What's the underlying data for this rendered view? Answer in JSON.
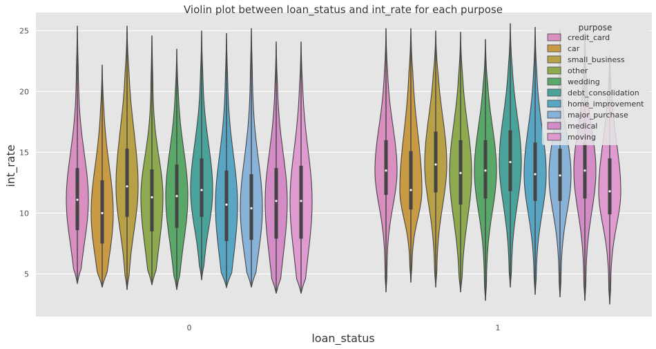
{
  "chart_data": {
    "type": "violin",
    "title": "Violin plot between loan_status and int_rate for each purpose",
    "xlabel": "loan_status",
    "ylabel": "int_rate",
    "categories": [
      "0",
      "1"
    ],
    "ylim": [
      1.5,
      26.5
    ],
    "yticks": [
      5,
      10,
      15,
      20,
      25
    ],
    "grid": true,
    "legend": {
      "title": "purpose",
      "position": "top-right"
    },
    "series": [
      {
        "name": "credit_card",
        "color": "#d98fbf",
        "values": [
          {
            "loan_status": "0",
            "min": 4.2,
            "q1": 8.6,
            "median": 11.1,
            "q3": 13.7,
            "max": 25.4
          },
          {
            "loan_status": "1",
            "min": 3.5,
            "q1": 11.5,
            "median": 13.5,
            "q3": 16.0,
            "max": 25.2
          }
        ]
      },
      {
        "name": "car",
        "color": "#c99a44",
        "values": [
          {
            "loan_status": "0",
            "min": 3.9,
            "q1": 7.5,
            "median": 10.0,
            "q3": 12.7,
            "max": 22.2
          },
          {
            "loan_status": "1",
            "min": 4.3,
            "q1": 10.3,
            "median": 11.9,
            "q3": 15.1,
            "max": 25.2
          }
        ]
      },
      {
        "name": "small_business",
        "color": "#b8a046",
        "values": [
          {
            "loan_status": "0",
            "min": 3.7,
            "q1": 9.7,
            "median": 12.2,
            "q3": 15.3,
            "max": 25.4
          },
          {
            "loan_status": "1",
            "min": 3.9,
            "q1": 11.7,
            "median": 14.0,
            "q3": 16.7,
            "max": 25.0
          }
        ]
      },
      {
        "name": "other",
        "color": "#8eaa4f",
        "values": [
          {
            "loan_status": "0",
            "min": 4.1,
            "q1": 8.5,
            "median": 11.3,
            "q3": 13.6,
            "max": 24.6
          },
          {
            "loan_status": "1",
            "min": 3.5,
            "q1": 10.7,
            "median": 13.3,
            "q3": 16.0,
            "max": 24.9
          }
        ]
      },
      {
        "name": "wedding",
        "color": "#5aa869",
        "values": [
          {
            "loan_status": "0",
            "min": 3.7,
            "q1": 8.8,
            "median": 11.4,
            "q3": 14.0,
            "max": 23.5
          },
          {
            "loan_status": "1",
            "min": 2.8,
            "q1": 11.2,
            "median": 13.5,
            "q3": 16.0,
            "max": 24.3
          }
        ]
      },
      {
        "name": "debt_consolidation",
        "color": "#4aa39a",
        "values": [
          {
            "loan_status": "0",
            "min": 4.5,
            "q1": 9.7,
            "median": 11.9,
            "q3": 14.5,
            "max": 25.0
          },
          {
            "loan_status": "1",
            "min": 3.9,
            "q1": 11.8,
            "median": 14.2,
            "q3": 16.8,
            "max": 25.6
          }
        ]
      },
      {
        "name": "home_improvement",
        "color": "#58a6c4",
        "values": [
          {
            "loan_status": "0",
            "min": 3.9,
            "q1": 7.7,
            "median": 10.7,
            "q3": 13.5,
            "max": 24.8
          },
          {
            "loan_status": "1",
            "min": 3.3,
            "q1": 11.0,
            "median": 13.2,
            "q3": 15.8,
            "max": 25.3
          }
        ]
      },
      {
        "name": "major_purchase",
        "color": "#89b2d9",
        "values": [
          {
            "loan_status": "0",
            "min": 3.9,
            "q1": 7.8,
            "median": 10.4,
            "q3": 13.2,
            "max": 25.2
          },
          {
            "loan_status": "1",
            "min": 3.1,
            "q1": 11.0,
            "median": 13.1,
            "q3": 15.3,
            "max": 25.1
          }
        ]
      },
      {
        "name": "medical",
        "color": "#d38cc6",
        "values": [
          {
            "loan_status": "0",
            "min": 3.4,
            "q1": 7.9,
            "median": 11.0,
            "q3": 13.7,
            "max": 24.1
          },
          {
            "loan_status": "1",
            "min": 2.8,
            "q1": 11.2,
            "median": 13.5,
            "q3": 15.8,
            "max": 24.9
          }
        ]
      },
      {
        "name": "moving",
        "color": "#df9ad0",
        "values": [
          {
            "loan_status": "0",
            "min": 3.4,
            "q1": 7.9,
            "median": 11.0,
            "q3": 13.9,
            "max": 24.1
          },
          {
            "loan_status": "1",
            "min": 2.5,
            "q1": 9.9,
            "median": 11.8,
            "q3": 14.5,
            "max": 23.0
          }
        ]
      }
    ]
  }
}
